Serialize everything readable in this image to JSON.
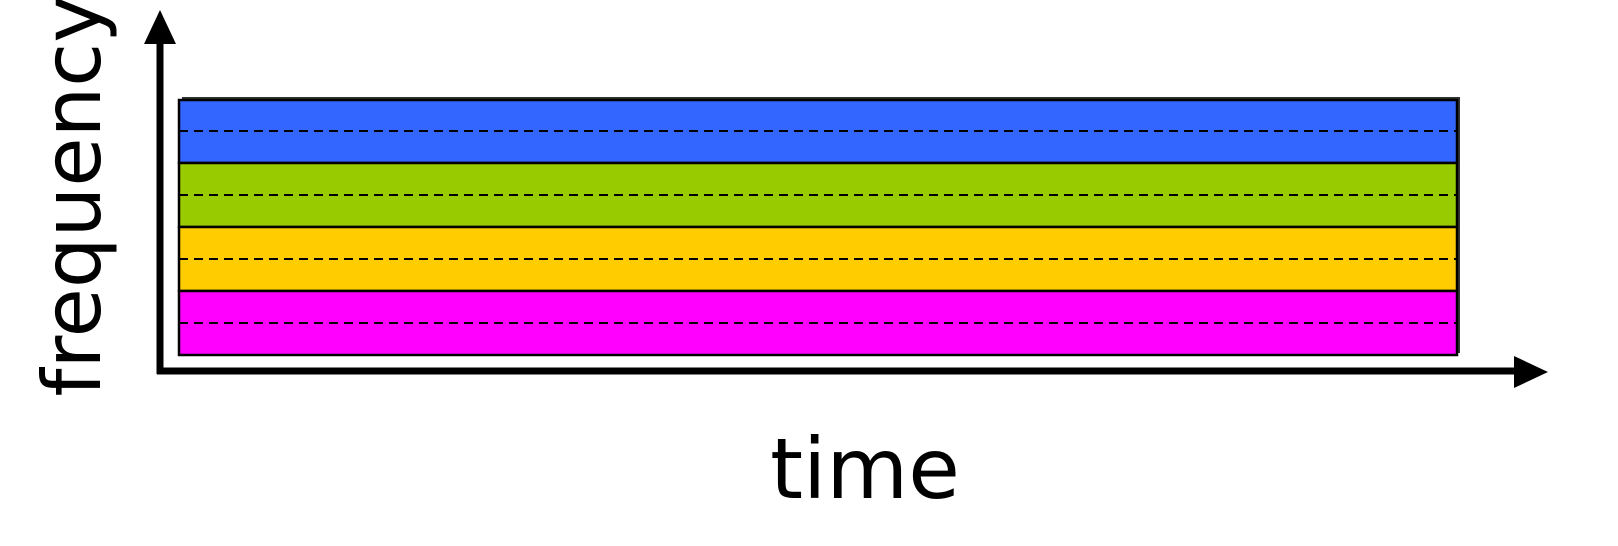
{
  "diagram": {
    "x_axis_label": "time",
    "y_axis_label": "frequency",
    "colors": {
      "axis": "#000000",
      "band_border": "#000000",
      "divider": "#000000"
    },
    "bands": [
      {
        "color": "#3366FF"
      },
      {
        "color": "#99CC00"
      },
      {
        "color": "#FFCC00"
      },
      {
        "color": "#FF00FF"
      }
    ]
  }
}
